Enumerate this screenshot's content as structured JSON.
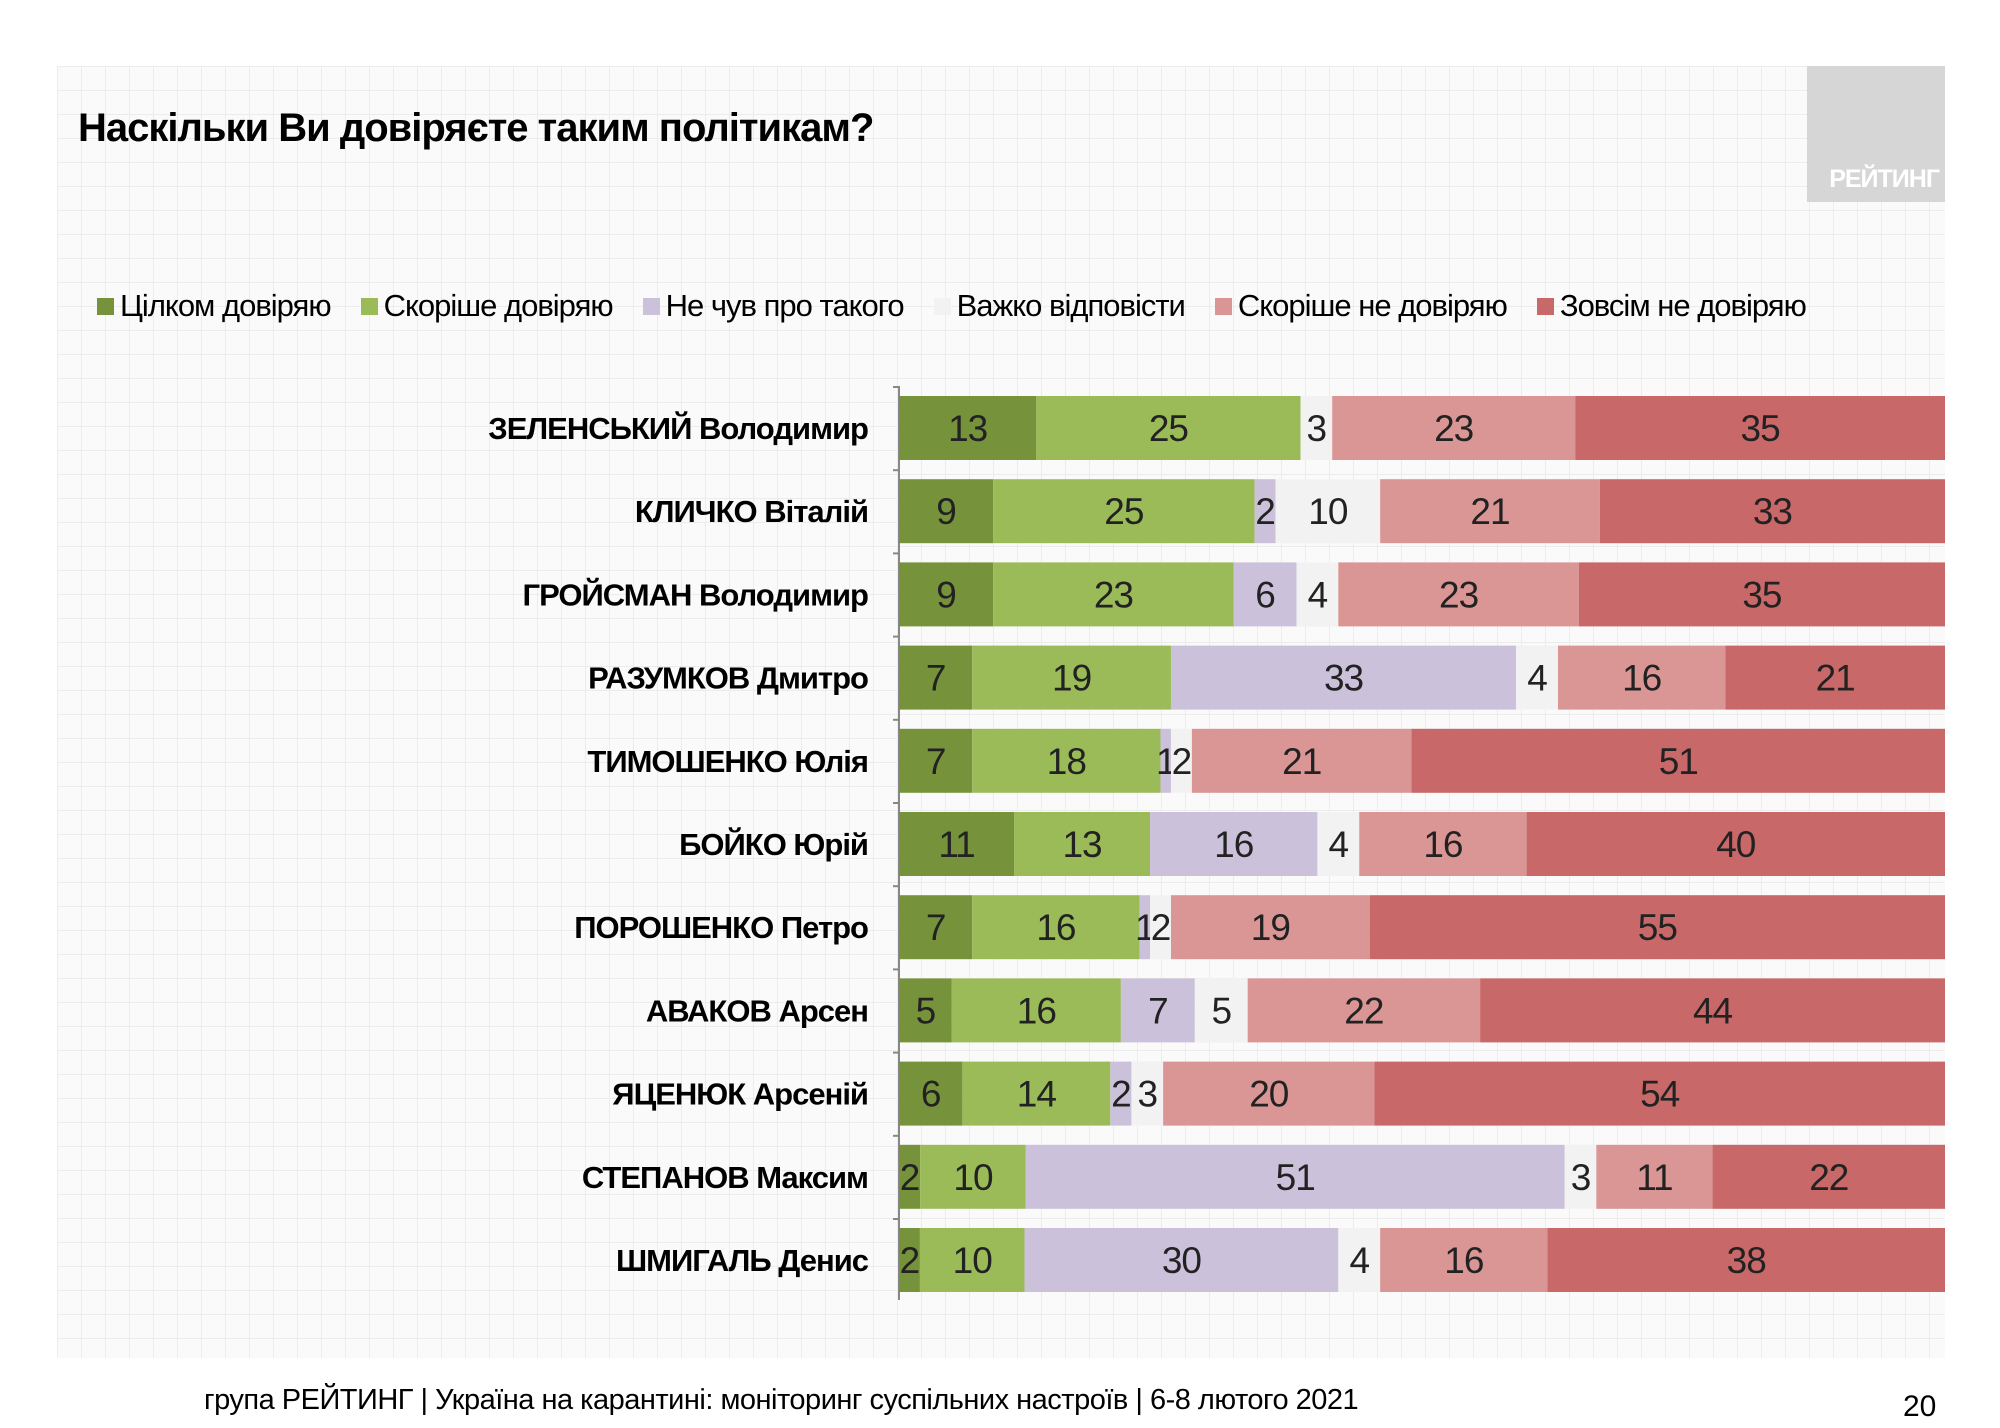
{
  "title": "Наскільки Ви довіряєте таким політикам?",
  "logo_text": "РЕЙТИНГ",
  "footer": "група РЕЙТИНГ | Україна на карантині: моніторинг суспільних настроїв | 6-8 лютого 2021",
  "page_number": "20",
  "chart_data": {
    "type": "bar",
    "orientation": "horizontal",
    "stacked": "100%",
    "title": "Наскільки Ви довіряєте таким політикам?",
    "legend_position": "top",
    "categories": [
      "ЗЕЛЕНСЬКИЙ Володимир",
      "КЛИЧКО Віталій",
      "ГРОЙСМАН Володимир",
      "РАЗУМКОВ Дмитро",
      "ТИМОШЕНКО Юлія",
      "БОЙКО Юрій",
      "ПОРОШЕНКО Петро",
      "АВАКОВ Арсен",
      "ЯЦЕНЮК Арсеній",
      "СТЕПАНОВ Максим",
      "ШМИГАЛЬ Денис"
    ],
    "series": [
      {
        "name": "Цілком довіряю",
        "color": "#76933c",
        "values": [
          13,
          9,
          9,
          7,
          7,
          11,
          7,
          5,
          6,
          2,
          2
        ]
      },
      {
        "name": "Скоріше довіряю",
        "color": "#9bbb59",
        "values": [
          25,
          25,
          23,
          19,
          18,
          13,
          16,
          16,
          14,
          10,
          10
        ]
      },
      {
        "name": "Не чув про такого",
        "color": "#ccc1da",
        "values": [
          0,
          2,
          6,
          33,
          1,
          16,
          1,
          7,
          2,
          51,
          30
        ]
      },
      {
        "name": "Важко відповісти",
        "color": "#f2f2f2",
        "values": [
          3,
          10,
          4,
          4,
          2,
          4,
          2,
          5,
          3,
          3,
          4
        ]
      },
      {
        "name": "Скоріше не довіряю",
        "color": "#da9694",
        "values": [
          23,
          21,
          23,
          16,
          21,
          16,
          19,
          22,
          20,
          11,
          16
        ]
      },
      {
        "name": "Зовсім не довіряю",
        "color": "#c96868",
        "values": [
          35,
          33,
          35,
          21,
          51,
          40,
          55,
          44,
          54,
          22,
          38
        ]
      }
    ],
    "grid": false
  }
}
